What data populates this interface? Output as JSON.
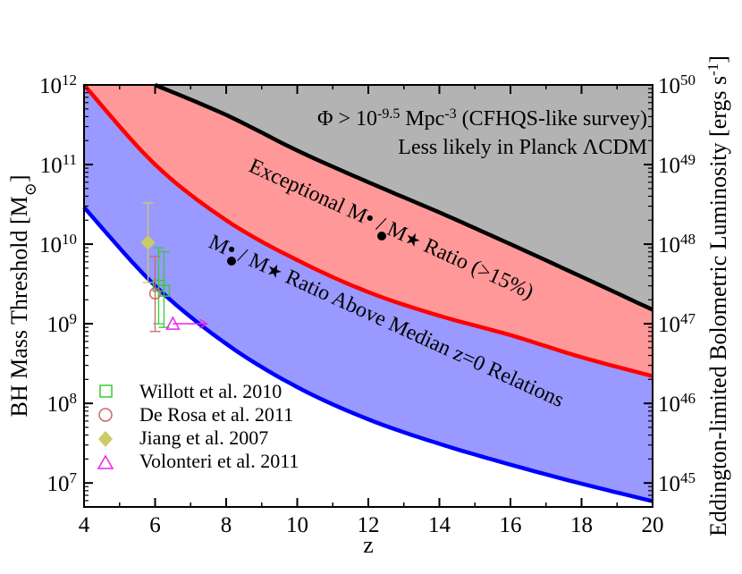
{
  "chart_data": {
    "type": "line",
    "xlabel": "z",
    "ylabel": "BH Mass Threshold [M",
    "ylabel_sub": "⊙",
    "ylabel_close": "]",
    "y2label": "Eddington-limited Bolometric Luminosity [ergs s",
    "y2label_sup": "-1",
    "y2label_close": "]",
    "xlim": [
      4,
      20
    ],
    "ylim": [
      5000000,
      1000000000000
    ],
    "yscale": "log",
    "y2lim": [
      5e+44,
      1e+50
    ],
    "xticks": [
      "4",
      "6",
      "8",
      "10",
      "12",
      "14",
      "16",
      "18",
      "20"
    ],
    "yticks": [
      {
        "base": "10",
        "exp": "7",
        "value": 10000000
      },
      {
        "base": "10",
        "exp": "8",
        "value": 100000000
      },
      {
        "base": "10",
        "exp": "9",
        "value": 1000000000
      },
      {
        "base": "10",
        "exp": "10",
        "value": 10000000000
      },
      {
        "base": "10",
        "exp": "11",
        "value": 100000000000
      },
      {
        "base": "10",
        "exp": "12",
        "value": 1000000000000
      }
    ],
    "y2ticks": [
      {
        "base": "10",
        "exp": "45",
        "value": 1e+45
      },
      {
        "base": "10",
        "exp": "46",
        "value": 1e+46
      },
      {
        "base": "10",
        "exp": "47",
        "value": 1e+47
      },
      {
        "base": "10",
        "exp": "48",
        "value": 1e+48
      },
      {
        "base": "10",
        "exp": "49",
        "value": 1e+49
      },
      {
        "base": "10",
        "exp": "50",
        "value": 1e+50
      }
    ],
    "series": [
      {
        "color": "#0000ff",
        "x": [
          4,
          6,
          8,
          10,
          12,
          14,
          16,
          18,
          20
        ],
        "values": [
          29000000000,
          3000000000,
          560000000,
          160000000,
          63000000,
          31000000,
          17000000,
          9800000,
          5900000
        ]
      },
      {
        "color": "#ff0000",
        "x": [
          4,
          6,
          8,
          10,
          12,
          14,
          16,
          18,
          20
        ],
        "values": [
          1000000000000,
          100000000000,
          20000000000,
          6300000000,
          2500000000,
          1260000000,
          720000000,
          380000000,
          220000000
        ]
      },
      {
        "color": "#000000",
        "x": [
          6.0,
          8,
          10,
          12,
          14,
          16,
          18,
          20
        ],
        "values": [
          1000000000000,
          420000000000,
          150000000000,
          60000000000,
          25000000000,
          10000000000,
          3900000000,
          1500000000
        ]
      }
    ],
    "regions": [
      {
        "color": "#9999ff",
        "between": [
          0,
          1
        ]
      },
      {
        "color": "#ff9999",
        "between": [
          1,
          2
        ]
      },
      {
        "color": "#b3b3b3",
        "above": 2
      }
    ],
    "annotations": {
      "phi_line1": "Φ > 10",
      "phi_sup": "-9.5",
      "phi_mid": " Mpc",
      "phi_sup2": "-3",
      "phi_rest": " (CFHQS-like survey)",
      "planck": "Less likely in Planck ΛCDM",
      "exceptional_a": "Exceptional M",
      "exceptional_b": " / M",
      "exceptional_c": " Ratio (>15%)",
      "median_a": "M",
      "median_b": " / M",
      "median_c": " Ratio Above Median z=0 Relations"
    },
    "observations": [
      {
        "name": "Willott et al. 2010",
        "color": "#33cc33",
        "marker": "square",
        "points": [
          {
            "x": 6.1,
            "y": 3000000000,
            "ylow": 1000000000,
            "yhigh": 9000000000
          },
          {
            "x": 6.25,
            "y": 2600000000,
            "ylow": 900000000,
            "yhigh": 8000000000
          }
        ]
      },
      {
        "name": "De Rosa et al. 2011",
        "color": "#cc6666",
        "marker": "circle",
        "points": [
          {
            "x": 6.0,
            "y": 2400000000,
            "ylow": 800000000,
            "yhigh": 7000000000
          }
        ]
      },
      {
        "name": "Jiang et al. 2007",
        "color": "#cccc66",
        "marker": "diamond",
        "points": [
          {
            "x": 5.8,
            "y": 10500000000,
            "ylow": 3300000000,
            "yhigh": 33000000000
          }
        ]
      },
      {
        "name": "Volonteri et al. 2011",
        "color": "#ee22ee",
        "marker": "triangle",
        "points": [
          {
            "x": 6.5,
            "y": 1000000000,
            "arrow": "right"
          }
        ]
      }
    ]
  }
}
